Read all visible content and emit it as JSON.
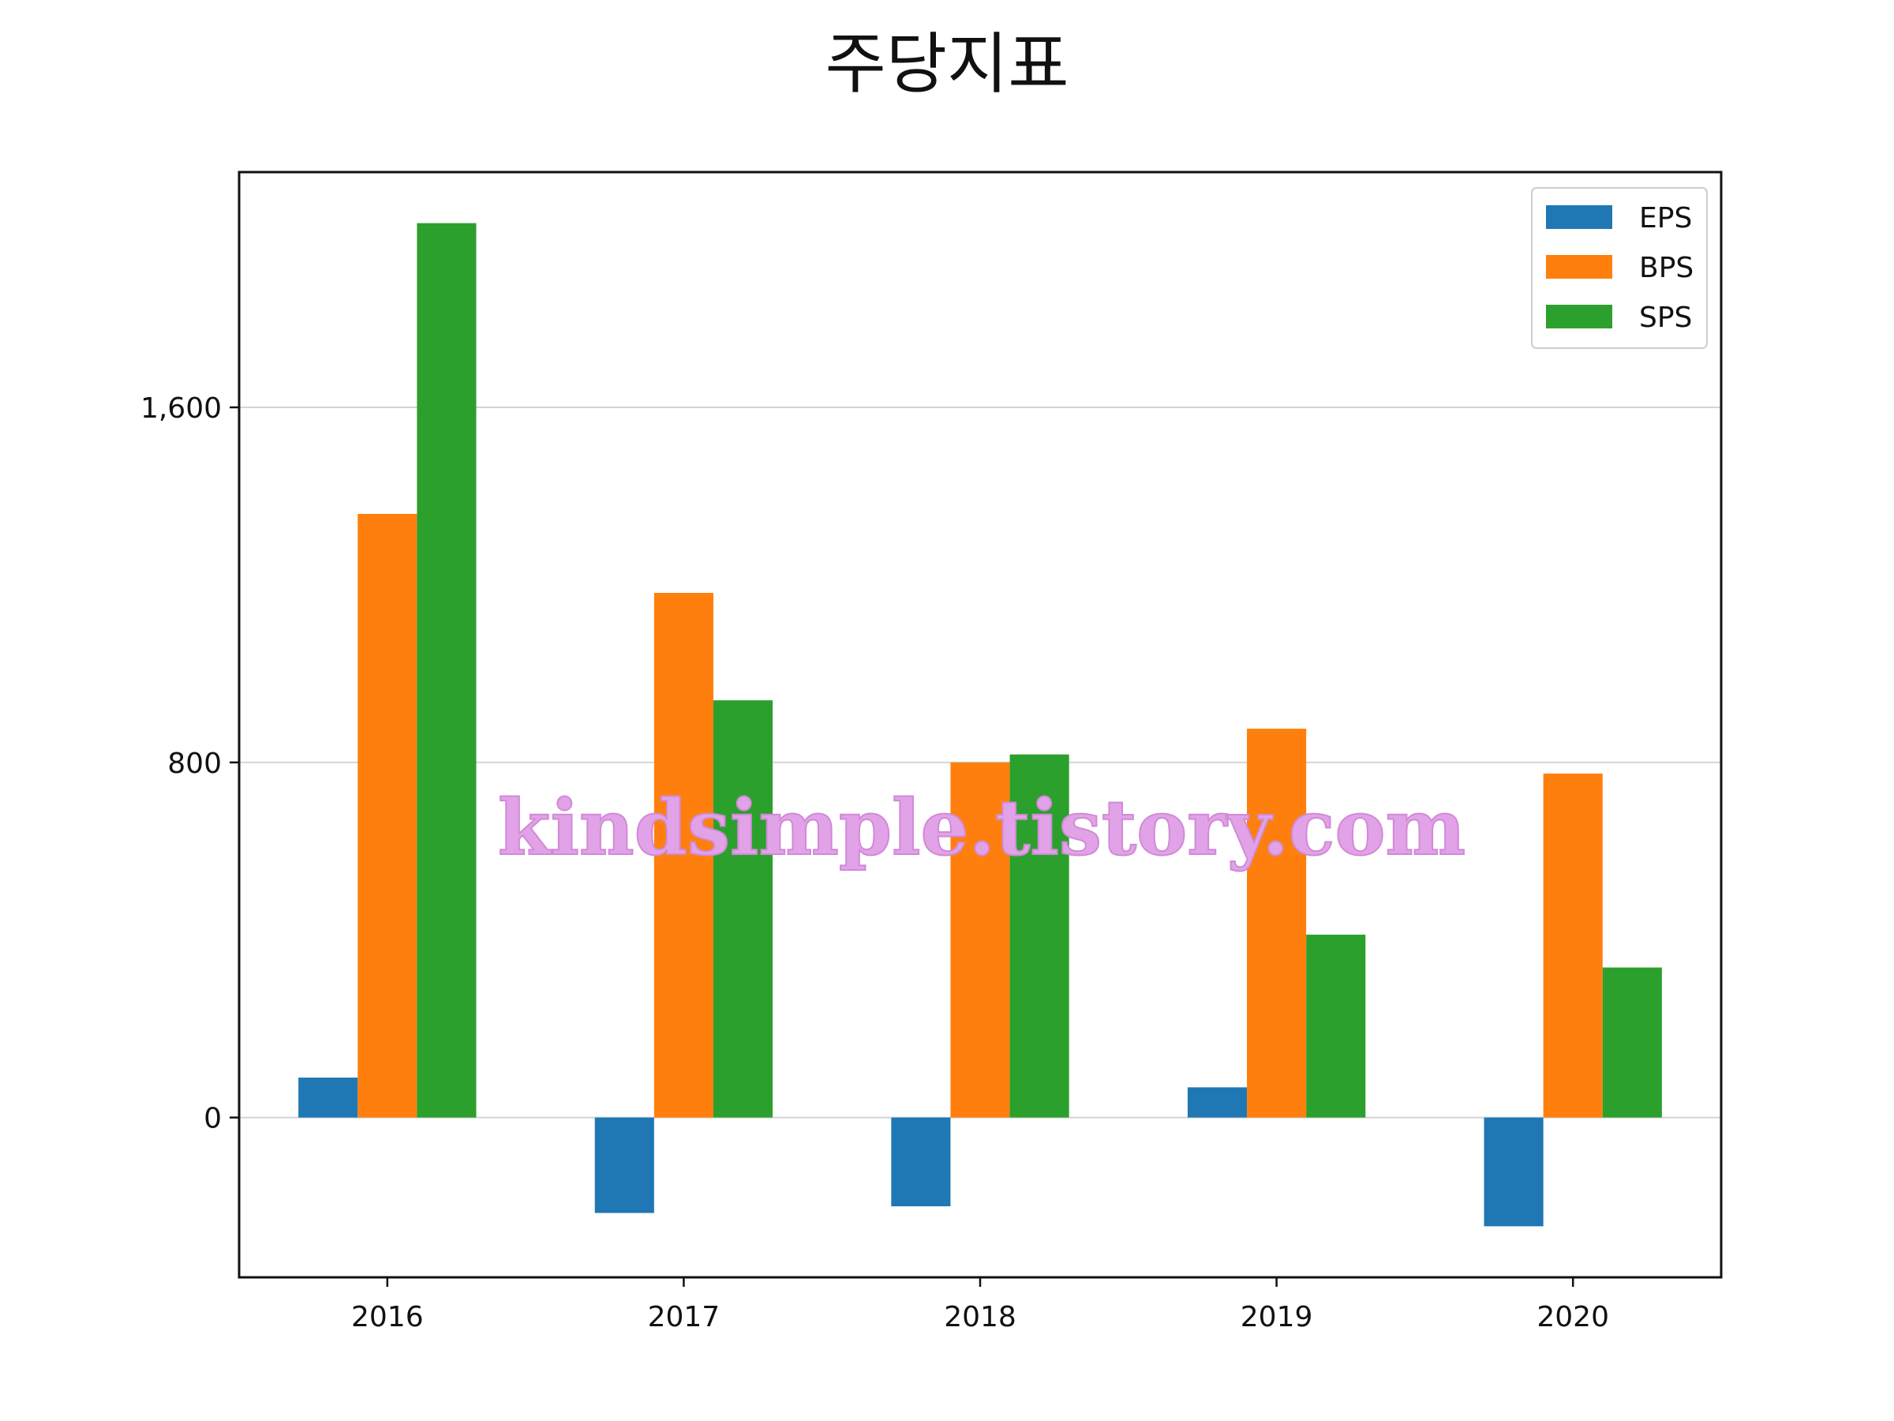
{
  "chart_data": {
    "type": "bar",
    "title": "주당지표",
    "categories": [
      "2016",
      "2017",
      "2018",
      "2019",
      "2020"
    ],
    "series": [
      {
        "name": "EPS",
        "color": "#1f77b4",
        "values": [
          90,
          -215,
          -200,
          68,
          -245
        ]
      },
      {
        "name": "BPS",
        "color": "#ff7f0e",
        "values": [
          1360,
          1182,
          800,
          876,
          775
        ]
      },
      {
        "name": "SPS",
        "color": "#2ca02c",
        "values": [
          2015,
          940,
          818,
          412,
          338
        ]
      }
    ],
    "yticks": [
      0,
      800,
      1600
    ],
    "ytick_labels": [
      "0",
      "800",
      "1,600"
    ],
    "ylim": [
      -360,
      2130
    ],
    "grid": "horizontal",
    "legend_position": "top-right",
    "watermark": "kindsimple.tistory.com"
  }
}
